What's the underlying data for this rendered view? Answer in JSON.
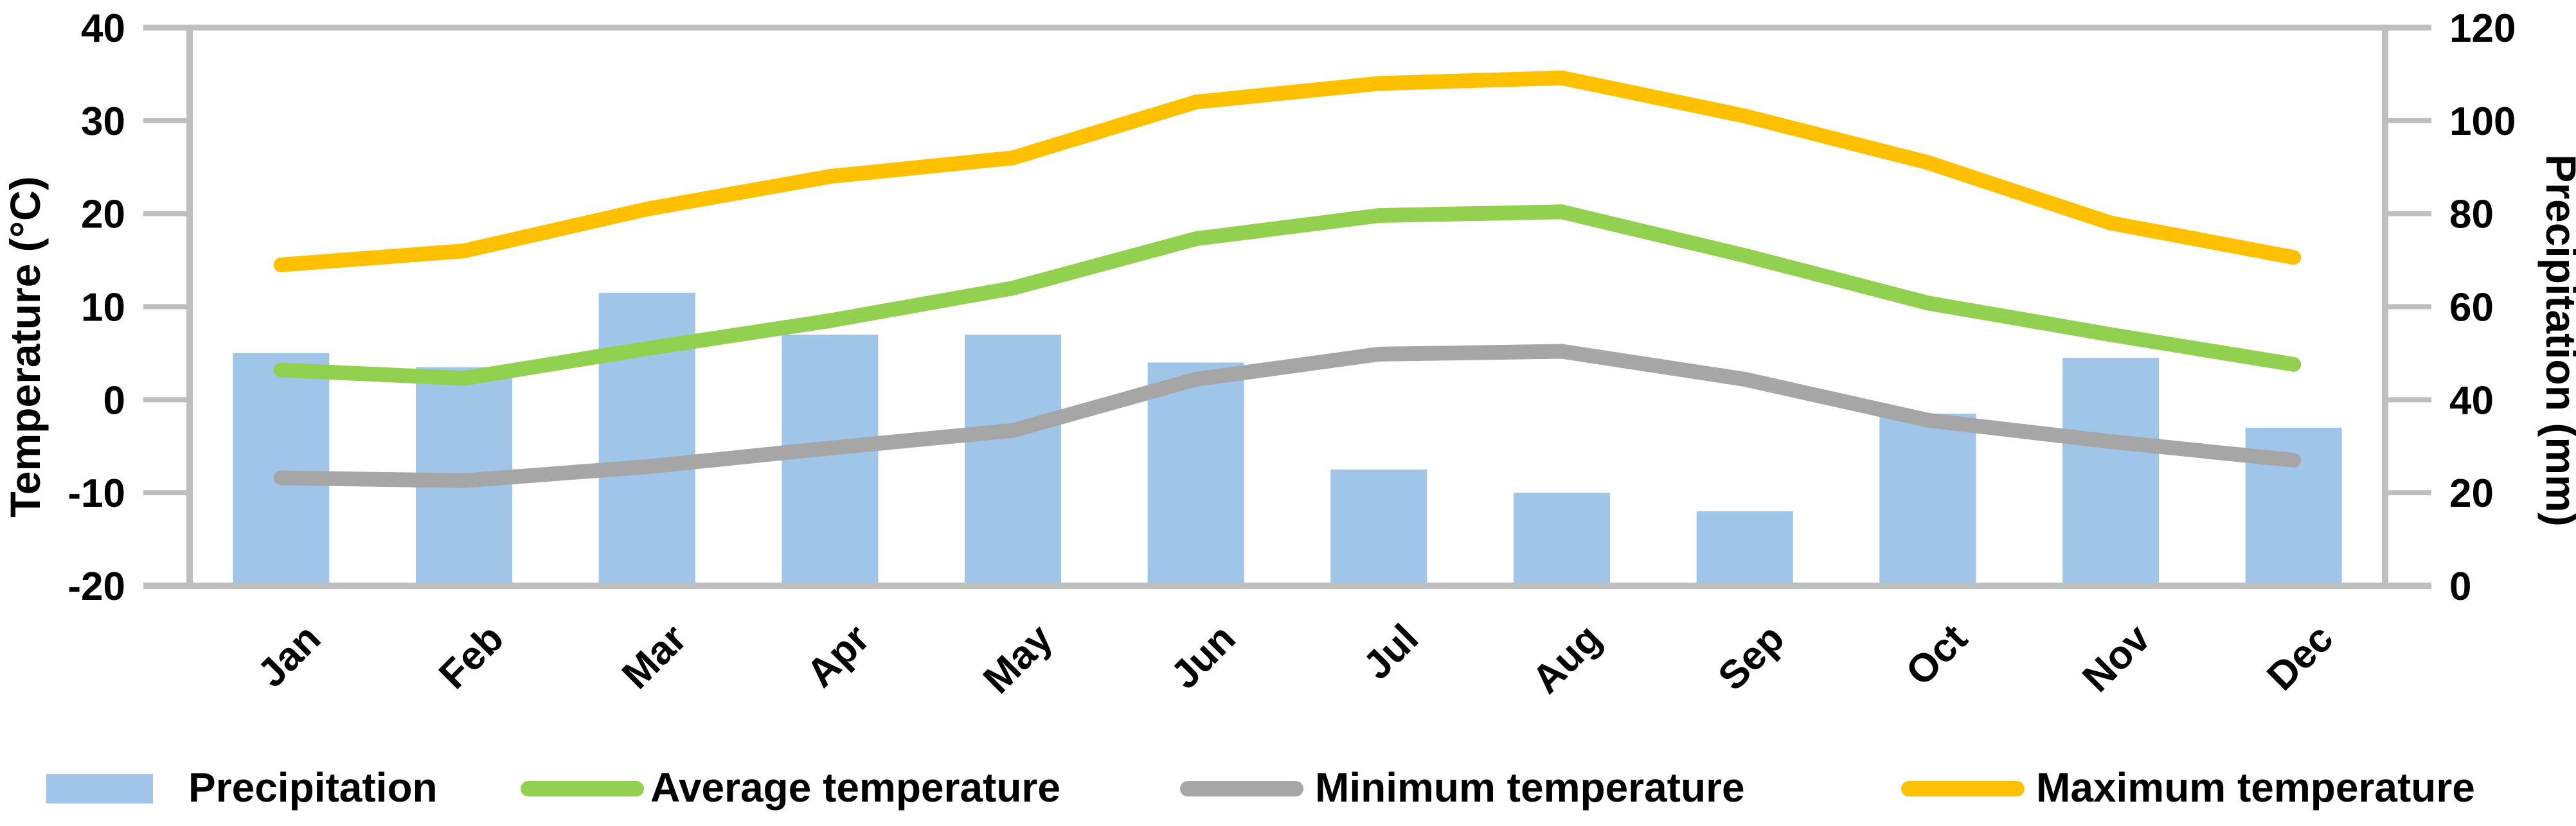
{
  "chart_data": {
    "type": "combo",
    "categories": [
      "Jan",
      "Feb",
      "Mar",
      "Apr",
      "May",
      "Jun",
      "Jul",
      "Aug",
      "Sep",
      "Oct",
      "Nov",
      "Dec"
    ],
    "series": [
      {
        "name": "Precipitation",
        "type": "bar",
        "axis": "right",
        "color": "#9FC5E8",
        "values": [
          50,
          47,
          63,
          54,
          54,
          48,
          25,
          20,
          16,
          37,
          49,
          34
        ]
      },
      {
        "name": "Average temperature",
        "type": "line",
        "axis": "left",
        "color": "#92D050",
        "values": [
          3.2,
          2.3,
          5.5,
          8.5,
          12.0,
          17.3,
          19.8,
          20.2,
          15.5,
          10.4,
          7.0,
          3.8
        ]
      },
      {
        "name": "Minimum temperature",
        "type": "line",
        "axis": "left",
        "color": "#A6A6A6",
        "values": [
          -8.4,
          -8.7,
          -7.2,
          -5.2,
          -3.3,
          2.2,
          4.9,
          5.2,
          2.2,
          -2.2,
          -4.5,
          -6.5
        ]
      },
      {
        "name": "Maximum temperature",
        "type": "line",
        "axis": "left",
        "color": "#FFC000",
        "values": [
          14.5,
          16.0,
          20.5,
          24.0,
          26.0,
          32.0,
          34.0,
          34.6,
          30.5,
          25.5,
          19.0,
          15.3
        ]
      }
    ],
    "left_axis": {
      "title": "Temperature (°C)",
      "min": -20,
      "max": 40,
      "step": 10,
      "ticks": [
        "40",
        "30",
        "20",
        "10",
        "0",
        "-10",
        "-20"
      ]
    },
    "right_axis": {
      "title": "Precipitation (mm)",
      "min": 0,
      "max": 120,
      "step": 20,
      "ticks": [
        "120",
        "100",
        "80",
        "60",
        "40",
        "20",
        "0"
      ]
    },
    "legend_position": "bottom",
    "grid": "top-border-only",
    "axis_color": "#BFBFBF",
    "text_color": "#000000"
  },
  "legend": {
    "items": [
      {
        "label": "Precipitation",
        "swatch": "bar-swatch",
        "color": "#9FC5E8"
      },
      {
        "label": "Average temperature",
        "swatch": "line-swatch",
        "color": "#92D050"
      },
      {
        "label": "Minimum temperature",
        "swatch": "line-swatch",
        "color": "#A6A6A6"
      },
      {
        "label": "Maximum temperature",
        "swatch": "line-swatch",
        "color": "#FFC000"
      }
    ]
  },
  "titles": {
    "left_axis_title": "Temperature (°C)",
    "right_axis_title": "Precipitation (mm)"
  }
}
